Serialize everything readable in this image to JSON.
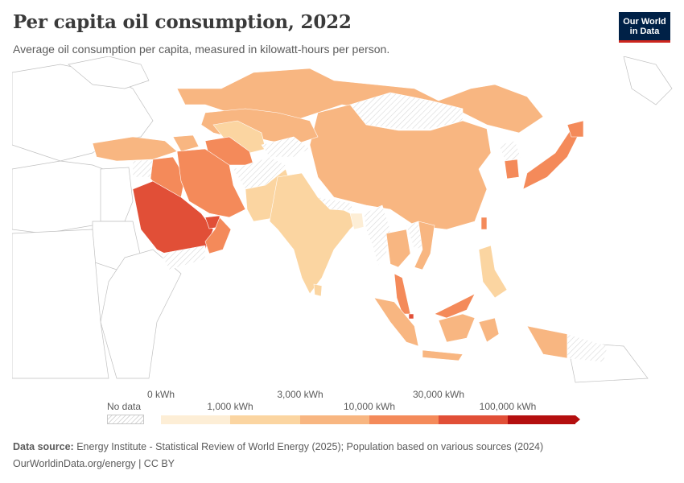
{
  "header": {
    "title": "Per capita oil consumption, 2022",
    "subtitle": "Average oil consumption per capita, measured in kilowatt-hours per person."
  },
  "logo": {
    "line1": "Our World",
    "line2": "in Data"
  },
  "legend": {
    "no_data_label": "No data",
    "tick_labels": [
      "0 kWh",
      "1,000 kWh",
      "3,000 kWh",
      "10,000 kWh",
      "30,000 kWh",
      "100,000 kWh"
    ],
    "bins": [
      {
        "range": "0–1,000 kWh",
        "color": "#fdeed6"
      },
      {
        "range": "1,000–3,000 kWh",
        "color": "#fbd5a1"
      },
      {
        "range": "3,000–10,000 kWh",
        "color": "#f8b681"
      },
      {
        "range": "10,000–30,000 kWh",
        "color": "#f48a5a"
      },
      {
        "range": "30,000–100,000 kWh",
        "color": "#e14f37"
      },
      {
        "range": ">100,000 kWh",
        "color": "#b40f0f"
      }
    ]
  },
  "footer": {
    "source_label": "Data source:",
    "source_text": "Energy Institute - Statistical Review of World Energy (2025); Population based on various sources (2024)",
    "url": "OurWorldinData.org/energy | CC BY"
  },
  "colors": {
    "no_data_hatch": "#d9d9d9",
    "outline_countries": "#ffffff",
    "border": "#c0c0c0",
    "logo_bg": "#002147",
    "logo_accent": "#ce261e"
  },
  "map_regions": [
    {
      "name": "Russia",
      "bin": 2
    },
    {
      "name": "China",
      "bin": 2
    },
    {
      "name": "Mongolia",
      "bin": null
    },
    {
      "name": "Kazakhstan",
      "bin": 2
    },
    {
      "name": "Uzbekistan",
      "bin": 1
    },
    {
      "name": "Turkmenistan",
      "bin": 3
    },
    {
      "name": "Turkey",
      "bin": 2
    },
    {
      "name": "Iraq",
      "bin": 3
    },
    {
      "name": "Iran",
      "bin": 3
    },
    {
      "name": "Saudi Arabia",
      "bin": 4
    },
    {
      "name": "UAE",
      "bin": 4
    },
    {
      "name": "Oman",
      "bin": 3
    },
    {
      "name": "Yemen",
      "bin": null
    },
    {
      "name": "Afghanistan",
      "bin": null
    },
    {
      "name": "Pakistan",
      "bin": 1
    },
    {
      "name": "India",
      "bin": 1
    },
    {
      "name": "Bangladesh",
      "bin": 0
    },
    {
      "name": "Sri Lanka",
      "bin": 1
    },
    {
      "name": "Myanmar",
      "bin": null
    },
    {
      "name": "Thailand",
      "bin": 2
    },
    {
      "name": "Vietnam",
      "bin": 2
    },
    {
      "name": "Malaysia",
      "bin": 3
    },
    {
      "name": "Indonesia",
      "bin": 2
    },
    {
      "name": "Philippines",
      "bin": 1
    },
    {
      "name": "South Korea",
      "bin": 3
    },
    {
      "name": "Japan",
      "bin": 3
    },
    {
      "name": "Taiwan",
      "bin": 3
    },
    {
      "name": "Singapore",
      "bin": 4
    },
    {
      "name": "North Korea",
      "bin": null
    },
    {
      "name": "Papua New Guinea",
      "bin": null
    }
  ]
}
